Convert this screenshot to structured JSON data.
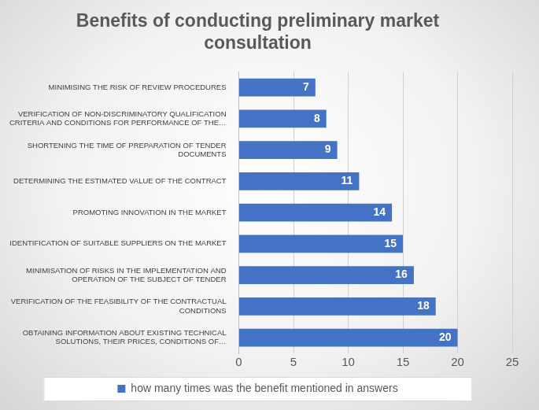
{
  "chart_data": {
    "type": "bar",
    "orientation": "horizontal",
    "title": "Benefits of conducting preliminary market consultation",
    "categories": [
      "MINIMISING THE RISK OF REVIEW PROCEDURES",
      "VERIFICATION OF NON-DISCRIMINATORY QUALIFICATION CRITERIA AND CONDITIONS FOR PERFORMANCE OF THE…",
      "SHORTENING THE TIME OF PREPARATION OF TENDER DOCUMENTS",
      "DETERMINING THE ESTIMATED VALUE OF THE CONTRACT",
      "PROMOTING INNOVATION IN THE MARKET",
      "IDENTIFICATION OF SUITABLE SUPPLIERS ON THE MARKET",
      "MINIMISATION OF RISKS IN THE IMPLEMENTATION AND OPERATION OF THE SUBJECT OF TENDER",
      "VERIFICATION OF THE FEASIBILITY OF THE CONTRACTUAL CONDITIONS",
      "OBTAINING INFORMATION ABOUT EXISTING TECHNICAL SOLUTIONS, THEIR PRICES, CONDITIONS OF…"
    ],
    "series": [
      {
        "name": "how many times was the benefit mentioned in answers",
        "color": "#4472c4",
        "values": [
          7,
          8,
          9,
          11,
          14,
          15,
          16,
          18,
          20
        ]
      }
    ],
    "xlim": [
      0,
      25
    ],
    "xticks": [
      0,
      5,
      10,
      15,
      20,
      25
    ],
    "grid": true,
    "legend": "bottom",
    "data_labels": true
  }
}
